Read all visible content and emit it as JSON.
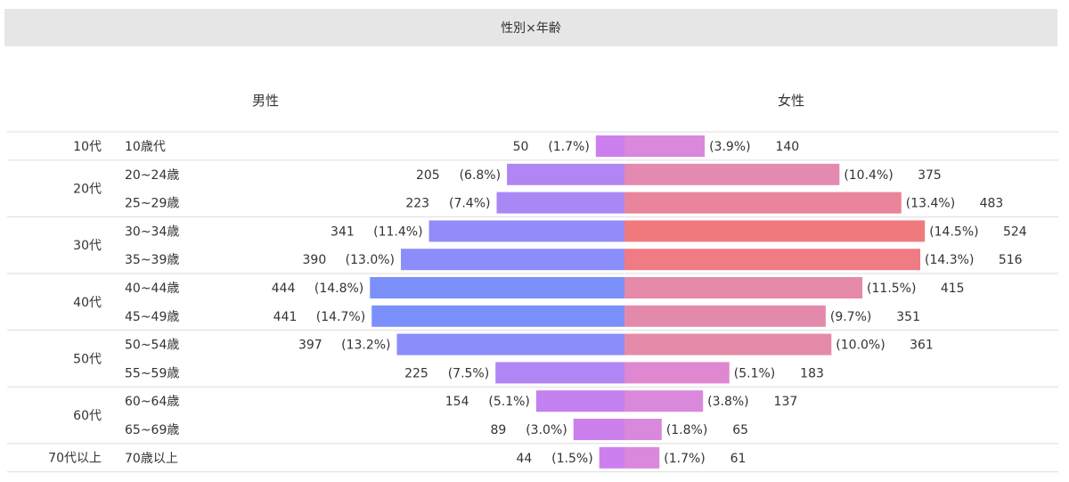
{
  "title": "性別×年齢",
  "male_label": "男性",
  "female_label": "女性",
  "chart_data": {
    "type": "bar",
    "title": "性別×年齢",
    "orientation": "diverging-horizontal",
    "groups": [
      {
        "label": "10代",
        "rows": [
          "10歳代"
        ]
      },
      {
        "label": "20代",
        "rows": [
          "20~24歳",
          "25~29歳"
        ]
      },
      {
        "label": "30代",
        "rows": [
          "30~34歳",
          "35~39歳"
        ]
      },
      {
        "label": "40代",
        "rows": [
          "40~44歳",
          "45~49歳"
        ]
      },
      {
        "label": "50代",
        "rows": [
          "50~54歳",
          "55~59歳"
        ]
      },
      {
        "label": "60代",
        "rows": [
          "60~64歳",
          "65~69歳"
        ]
      },
      {
        "label": "70代以上",
        "rows": [
          "70歳以上"
        ]
      }
    ],
    "categories": [
      "10歳代",
      "20~24歳",
      "25~29歳",
      "30~34歳",
      "35~39歳",
      "40~44歳",
      "45~49歳",
      "50~54歳",
      "55~59歳",
      "60~64歳",
      "65~69歳",
      "70歳以上"
    ],
    "series": [
      {
        "name": "男性",
        "values": [
          50,
          205,
          223,
          341,
          390,
          444,
          441,
          397,
          225,
          154,
          89,
          44
        ],
        "percents": [
          "(1.7%)",
          "(6.8%)",
          "(7.4%)",
          "(11.4%)",
          "(13.0%)",
          "(14.8%)",
          "(14.7%)",
          "(13.2%)",
          "(7.5%)",
          "(5.1%)",
          "(3.0%)",
          "(1.5%)"
        ]
      },
      {
        "name": "女性",
        "values": [
          140,
          375,
          483,
          524,
          516,
          415,
          351,
          361,
          183,
          137,
          65,
          61
        ],
        "percents": [
          "(3.9%)",
          "(10.4%)",
          "(13.4%)",
          "(14.5%)",
          "(14.3%)",
          "(11.5%)",
          "(9.7%)",
          "(10.0%)",
          "(5.1%)",
          "(3.8%)",
          "(1.8%)",
          "(1.7%)"
        ]
      }
    ],
    "bar_colors": {
      "male": [
        "#cc80ee",
        "#b186f4",
        "#a988f6",
        "#938bf8",
        "#8a8dfa",
        "#7c90fb",
        "#7c90fb",
        "#8a8dfa",
        "#b186f4",
        "#c380ef",
        "#cc80ee",
        "#cc80ee"
      ],
      "female": [
        "#d988dc",
        "#e489b0",
        "#ea849a",
        "#f0797e",
        "#f07b84",
        "#e58aa8",
        "#e38aac",
        "#e58aa8",
        "#df87d0",
        "#d988dc",
        "#d988dc",
        "#d988dc"
      ]
    },
    "grid": false,
    "legend": "none"
  }
}
